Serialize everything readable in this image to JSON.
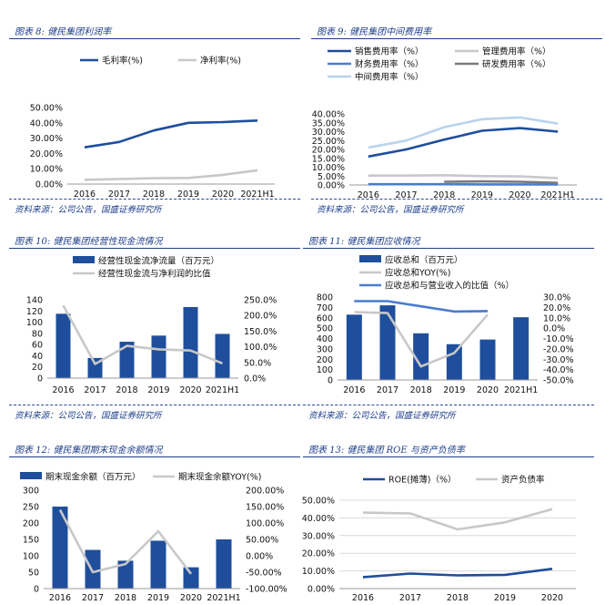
{
  "source_note": "资料来源：公司公告，国盛证券研究所",
  "panels": [
    {
      "title": "图表 8:  健民集团利润率"
    },
    {
      "title": "图表 9:  健民集团中间费用率"
    },
    {
      "title": "图表 10:  健民集团经营性现金流情况"
    },
    {
      "title": "图表 11:  健民集团应收情况"
    },
    {
      "title": "图表 12:  健民集团期末现金余额情况"
    },
    {
      "title": "图表 13:  健民集团 ROE 与资产负债率"
    }
  ],
  "colors": {
    "dark_blue": "#1f4e9c",
    "bar_blue": "#1f4e9c",
    "gray": "#bdbdbd",
    "dark_gray": "#7a7a7a",
    "mid_blue": "#4a7bd0",
    "light_blue": "#b9d3ee",
    "title_blue": "#1f3f8a"
  },
  "chart_data": [
    {
      "type": "line",
      "x": [
        "2016",
        "2017",
        "2018",
        "2019",
        "2020",
        "2021H1"
      ],
      "series": [
        {
          "name": "毛利率(%)",
          "values": [
            24.0,
            27.5,
            35.0,
            40.0,
            40.5,
            41.5
          ],
          "color": "#1f4e9c"
        },
        {
          "name": "净利率(%)",
          "values": [
            2.8,
            3.3,
            3.8,
            4.0,
            6.0,
            9.0
          ],
          "color": "#c8c8c8"
        }
      ],
      "ylim": [
        0,
        50
      ],
      "yticks": [
        "0.00%",
        "10.00%",
        "20.00%",
        "30.00%",
        "40.00%",
        "50.00%"
      ],
      "legend_position": "top",
      "grid": false
    },
    {
      "type": "line",
      "x": [
        "2016",
        "2017",
        "2018",
        "2019",
        "2020",
        "2021H1"
      ],
      "series": [
        {
          "name": "销售费用率（%）",
          "values": [
            16.0,
            20.0,
            25.5,
            30.5,
            32.0,
            30.0
          ],
          "color": "#1f4e9c"
        },
        {
          "name": "管理费用率（%）",
          "values": [
            5.3,
            5.3,
            5.5,
            5.0,
            4.8,
            3.8
          ],
          "color": "#c8c8c8"
        },
        {
          "name": "财务费用率（%）",
          "values": [
            0.4,
            0.4,
            0.4,
            0.3,
            0.3,
            0.3
          ],
          "color": "#4a7bd0"
        },
        {
          "name": "研发费用率（%）",
          "values": [
            null,
            null,
            1.8,
            2.0,
            1.8,
            1.2
          ],
          "color": "#7a7a7a"
        },
        {
          "name": "中间费用率（%）",
          "values": [
            21.0,
            25.0,
            32.5,
            37.0,
            38.0,
            34.5
          ],
          "color": "#b9d3ee"
        }
      ],
      "ylim": [
        0,
        40
      ],
      "yticks": [
        "0.00%",
        "5.00%",
        "10.00%",
        "15.00%",
        "20.00%",
        "25.00%",
        "30.00%",
        "35.00%",
        "40.00%"
      ],
      "legend_position": "top",
      "grid": false
    },
    {
      "type": "bar",
      "categories": [
        "2016",
        "2017",
        "2018",
        "2019",
        "2020",
        "2021H1"
      ],
      "series": [
        {
          "name": "经营性现金流净流量（百万元）",
          "values": [
            115,
            36,
            65,
            76,
            127,
            79
          ],
          "axis": "left",
          "kind": "bar",
          "color": "#1f4e9c"
        },
        {
          "name": "经营性现金流与净利润的比值",
          "values": [
            232,
            45,
            103,
            92,
            88,
            47
          ],
          "axis": "right",
          "kind": "line",
          "color": "#c8c8c8"
        }
      ],
      "ylim": [
        0,
        140
      ],
      "yticks": [
        "0",
        "20",
        "40",
        "60",
        "80",
        "100",
        "120",
        "140"
      ],
      "y2lim": [
        0,
        250
      ],
      "y2ticks": [
        "0.0%",
        "50.0%",
        "100.0%",
        "150.0%",
        "200.0%",
        "250.0%"
      ],
      "legend_position": "top",
      "grid": false
    },
    {
      "type": "bar",
      "categories": [
        "2016",
        "2017",
        "2018",
        "2019",
        "2020",
        "2021H1"
      ],
      "series": [
        {
          "name": "应收总和（百万元）",
          "values": [
            630,
            720,
            450,
            345,
            390,
            605
          ],
          "axis": "left",
          "kind": "bar",
          "color": "#1f4e9c"
        },
        {
          "name": "应收总和YOY(%)",
          "values": [
            15.5,
            14.5,
            -37.0,
            -24.0,
            13.0,
            null
          ],
          "axis": "right",
          "kind": "line",
          "color": "#c8c8c8"
        },
        {
          "name": "应收总和与营业收入的比值（%）",
          "values": [
            26.0,
            26.0,
            21.0,
            16.0,
            16.5,
            null
          ],
          "axis": "right",
          "kind": "line",
          "color": "#4a7bd0"
        }
      ],
      "ylim": [
        0,
        800
      ],
      "yticks": [
        "0",
        "100",
        "200",
        "300",
        "400",
        "500",
        "600",
        "700",
        "800"
      ],
      "y2lim": [
        -50,
        30
      ],
      "y2ticks": [
        "-50.0%",
        "-40.0%",
        "-30.0%",
        "-20.0%",
        "-10.0%",
        "0.0%",
        "10.0%",
        "20.0%",
        "30.0%"
      ],
      "legend_position": "top",
      "grid": false
    },
    {
      "type": "bar",
      "categories": [
        "2016",
        "2017",
        "2018",
        "2019",
        "2020",
        "2021H1"
      ],
      "series": [
        {
          "name": "期末现金余额（百万元）",
          "values": [
            250,
            118,
            85,
            146,
            65,
            150
          ],
          "axis": "left",
          "kind": "bar",
          "color": "#1f4e9c"
        },
        {
          "name": "期末现金余额YOY(%)",
          "values": [
            140,
            -50,
            -25,
            75,
            -55,
            null
          ],
          "axis": "right",
          "kind": "line",
          "color": "#c8c8c8"
        }
      ],
      "ylim": [
        0,
        300
      ],
      "yticks": [
        "0",
        "50",
        "100",
        "150",
        "200",
        "250",
        "300"
      ],
      "y2lim": [
        -100,
        200
      ],
      "y2ticks": [
        "-100.00%",
        "-50.00%",
        "0.00%",
        "50.00%",
        "100.00%",
        "150.00%",
        "200.00%"
      ],
      "legend_position": "top",
      "grid": false
    },
    {
      "type": "line",
      "x": [
        "2016",
        "2017",
        "2018",
        "2019",
        "2020"
      ],
      "series": [
        {
          "name": "ROE(摊薄)（%）",
          "values": [
            6.5,
            8.5,
            7.5,
            7.8,
            11.2
          ],
          "color": "#1f4e9c"
        },
        {
          "name": "资产负债率",
          "values": [
            43.0,
            42.5,
            33.5,
            37.5,
            45.0
          ],
          "color": "#c8c8c8"
        }
      ],
      "ylim": [
        0,
        50
      ],
      "yticks": [
        "0.00%",
        "10.00%",
        "20.00%",
        "30.00%",
        "40.00%",
        "50.00%"
      ],
      "legend_position": "top",
      "grid": true
    }
  ]
}
